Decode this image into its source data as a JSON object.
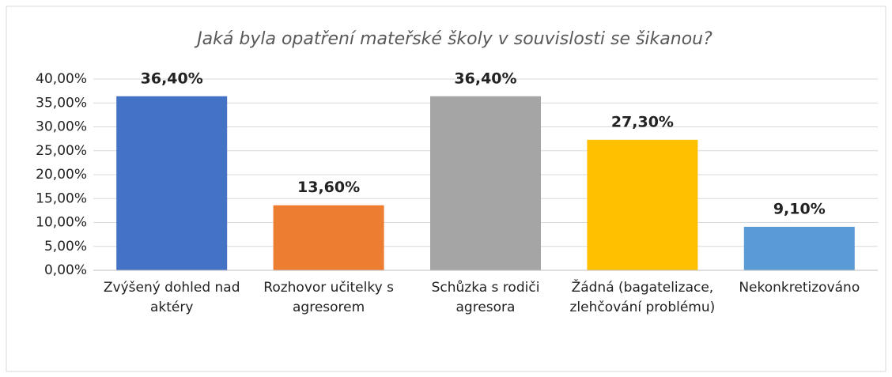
{
  "chart_data": {
    "type": "bar",
    "title": "Jaká byla opatření mateřské školy v souvislosti se šikanou?",
    "categories": [
      "Zvýšený dohled nad aktéry",
      "Rozhovor učitelky s agresorem",
      "Schůzka s rodiči agresora",
      "Žádná (bagatelizace, zlehčování problému)",
      "Nekonkretizováno"
    ],
    "values": [
      36.4,
      13.6,
      36.4,
      27.3,
      9.1
    ],
    "value_labels": [
      "36,40%",
      "13,60%",
      "36,40%",
      "27,30%",
      "9,10%"
    ],
    "colors": [
      "#4472c4",
      "#ed7d31",
      "#a5a5a5",
      "#ffc000",
      "#5b9bd5"
    ],
    "ylim": [
      0,
      40
    ],
    "yticks": [
      {
        "value": 0,
        "label": "0,00%"
      },
      {
        "value": 5,
        "label": "5,00%"
      },
      {
        "value": 10,
        "label": "10,00%"
      },
      {
        "value": 15,
        "label": "15,00%"
      },
      {
        "value": 20,
        "label": "20,00%"
      },
      {
        "value": 25,
        "label": "25,00%"
      },
      {
        "value": 30,
        "label": "30,00%"
      },
      {
        "value": 35,
        "label": "35,00%"
      },
      {
        "value": 40,
        "label": "40,00%"
      }
    ],
    "grid": true
  }
}
